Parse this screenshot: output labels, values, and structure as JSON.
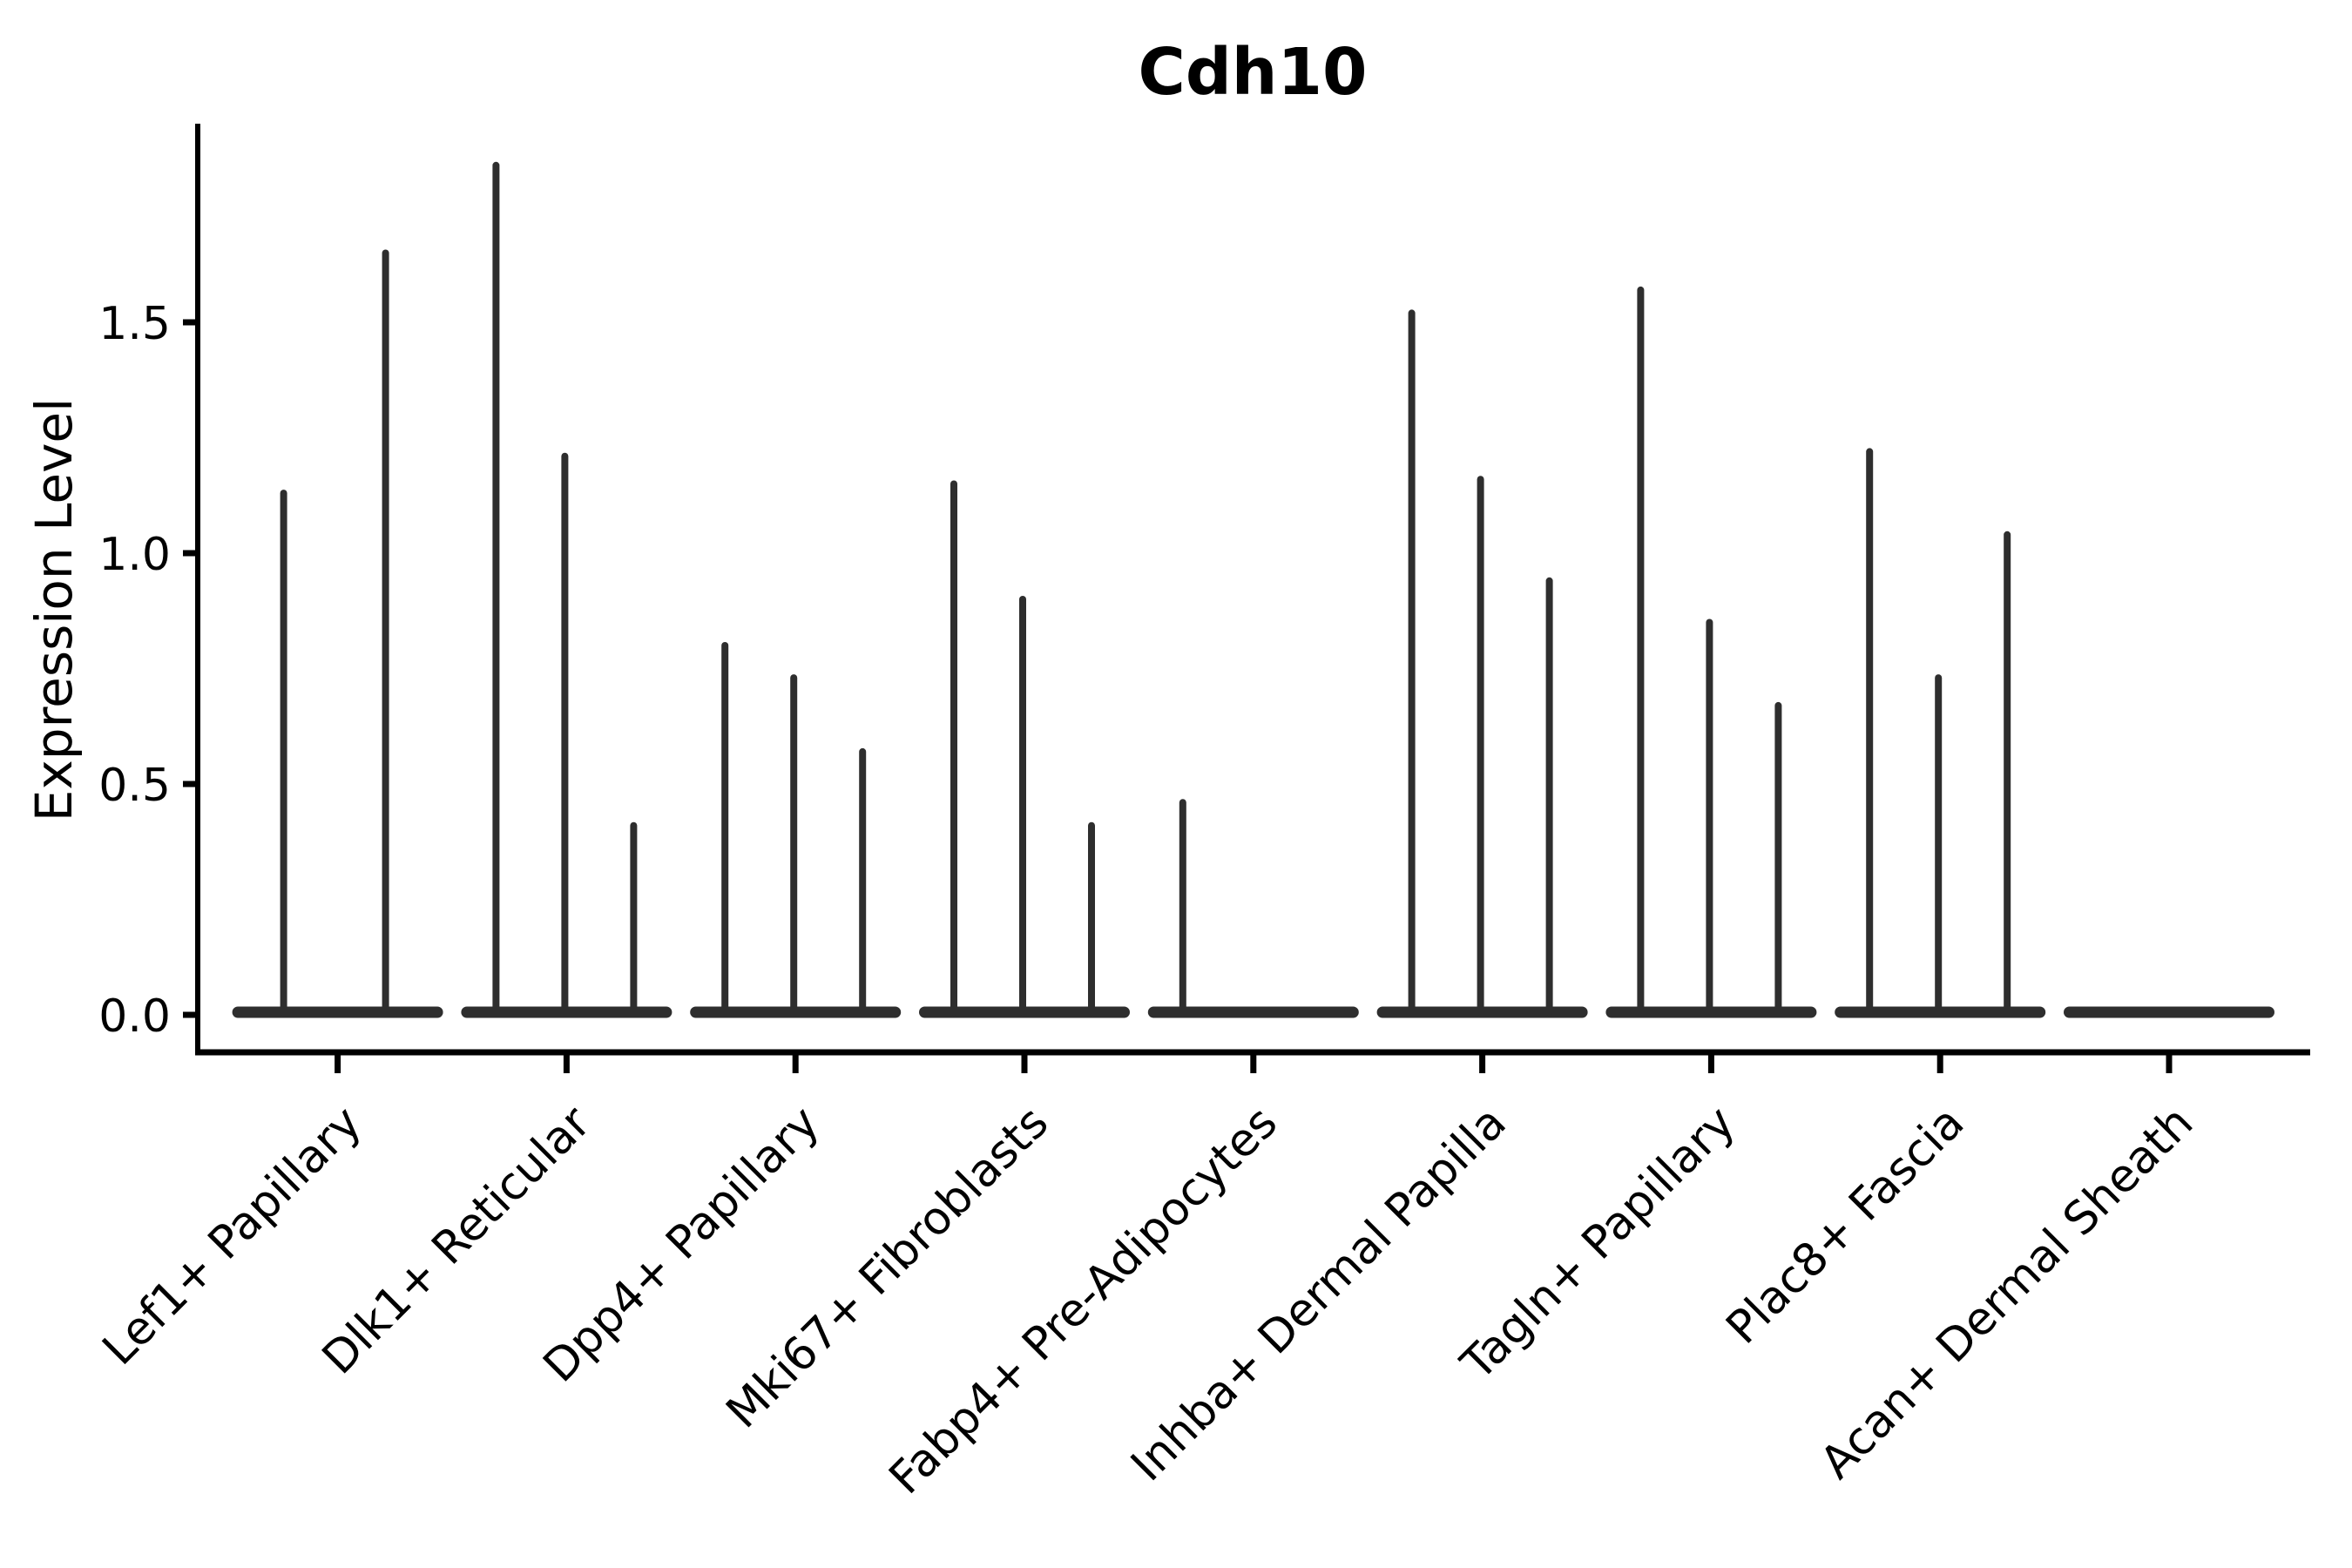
{
  "chart_data": {
    "type": "violin",
    "title": "Cdh10",
    "xlabel": "",
    "ylabel": "Expression Level",
    "categories": [
      "Lef1+ Papillary",
      "Dlk1+ Reticular",
      "Dpp4+ Papillary",
      "Mki67+ Fibroblasts",
      "Fabp4+ Pre-Adipocytes",
      "Inhba+ Dermal Papilla",
      "Tagln+ Papillary",
      "Plac8+ Fascia",
      "Acan+ Dermal Sheath"
    ],
    "violin_peaks": [
      [
        1.13,
        1.65
      ],
      [
        1.84,
        1.21,
        0.41
      ],
      [
        0.8,
        0.73,
        0.57
      ],
      [
        1.15,
        0.9,
        0.41
      ],
      [
        0.46,
        0.0,
        0.0
      ],
      [
        1.52,
        1.16,
        0.94
      ],
      [
        1.57,
        0.85,
        0.67
      ],
      [
        1.22,
        0.73,
        1.04
      ],
      [
        0.0,
        0.0,
        0.0
      ]
    ],
    "violin_shape_note": "each violin is collapsed to a flat base at 0 with a thin vertical density spike reaching its peak value",
    "ytick_labels": [
      "0.0",
      "0.5",
      "1.0",
      "1.5"
    ],
    "ytick_values": [
      0.0,
      0.5,
      1.0,
      1.5
    ],
    "ylim": [
      -0.07,
      1.93
    ],
    "grid": false,
    "legend_position": "none",
    "xtick_rotation_degrees": 45
  },
  "colors": {
    "violin": "#2e2e2e",
    "axis": "#000000",
    "text": "#000000",
    "background": "#ffffff"
  }
}
